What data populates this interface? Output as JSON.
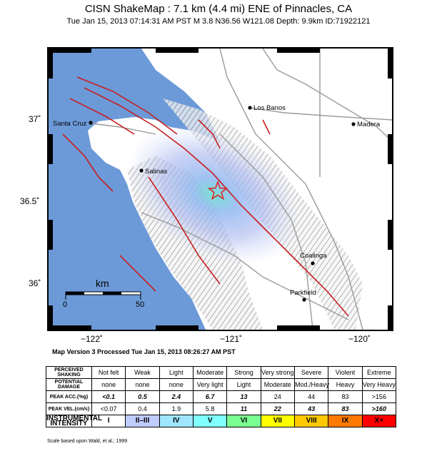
{
  "header": {
    "title": "CISN ShakeMap : 7.1 km (4.4 mi) ENE of Pinnacles, CA",
    "subtitle": "Tue Jan 15, 2013 07:14:31 AM PST   M 3.8   N36.56 W121.08   Depth: 9.9km   ID:71922121"
  },
  "map": {
    "lat_labels": [
      "37˚",
      "36.5˚",
      "36˚"
    ],
    "lon_labels": [
      "−122˚",
      "−121˚",
      "−120˚"
    ],
    "cities": [
      {
        "name": "Los Banos"
      },
      {
        "name": "Madera"
      },
      {
        "name": "Santa Cruz"
      },
      {
        "name": "Salinas"
      },
      {
        "name": "Coalinga"
      },
      {
        "name": "Parkfield"
      }
    ],
    "scale_bar": {
      "unit": "km",
      "start": "0",
      "end": "50"
    },
    "colors": {
      "ocean": "#6c9ad8",
      "land": "#ffffff",
      "faults": "#c81e1e",
      "roads": "#9a9a9a",
      "epicenter": "#e02020"
    }
  },
  "version": "Map Version 3 Processed Tue Jan 15, 2013 08:26:27 AM PST",
  "legend": {
    "rows": [
      {
        "label": "PERCEIVED SHAKING",
        "cells": [
          "Not felt",
          "Weak",
          "Light",
          "Moderate",
          "Strong",
          "Very strong",
          "Severe",
          "Violent",
          "Extreme"
        ]
      },
      {
        "label": "POTENTIAL DAMAGE",
        "cells": [
          "none",
          "none",
          "none",
          "Very light",
          "Light",
          "Moderate",
          "Mod./Heavy",
          "Heavy",
          "Very Heavy"
        ]
      },
      {
        "label": "PEAK ACC.(%g)",
        "cells": [
          "<0.1",
          "0.5",
          "2.4",
          "6.7",
          "13",
          "24",
          "44",
          "83",
          ">156"
        ]
      },
      {
        "label": "PEAK VEL.(cm/s)",
        "cells": [
          "<0.07",
          "0.4",
          "1.9",
          "5.8",
          "11",
          "22",
          "43",
          "83",
          ">160"
        ]
      },
      {
        "label": "INSTRUMENTAL INTENSITY",
        "cells": [
          "I",
          "II–III",
          "IV",
          "V",
          "VI",
          "VII",
          "VIII",
          "IX",
          "X+"
        ]
      }
    ],
    "intensity_colors": [
      "#ffffff",
      "#bfccff",
      "#a0e6ff",
      "#80ffff",
      "#7aff93",
      "#ffff00",
      "#ffc800",
      "#ff7800",
      "#ff0000"
    ]
  },
  "credit": "Scale based upon Wald, et al.; 1999"
}
